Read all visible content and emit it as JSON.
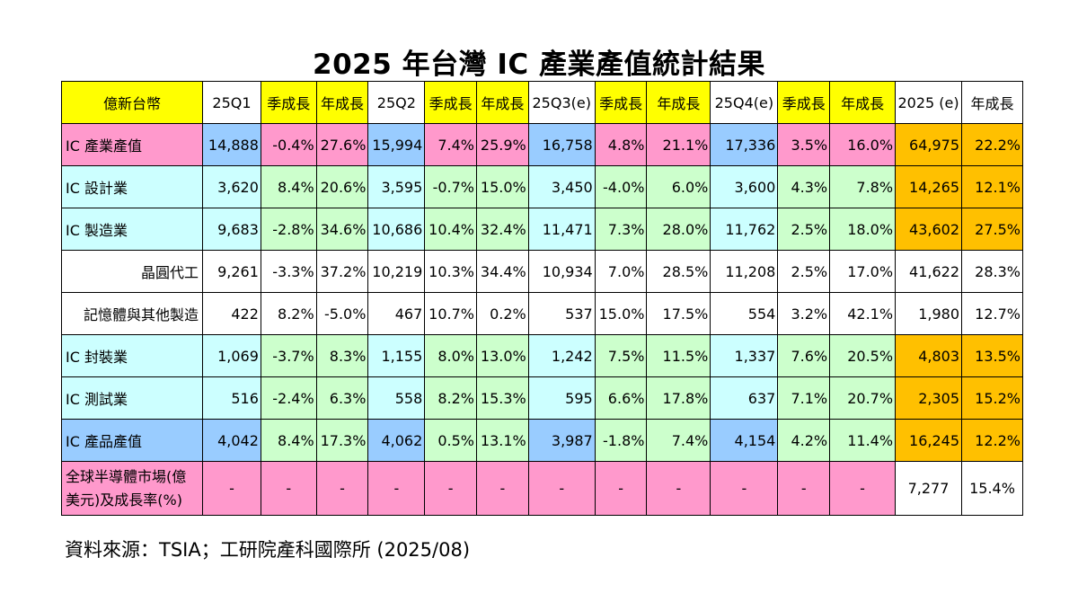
{
  "title": "2025 年台灣 IC 產業產值統計結果",
  "source": "資料來源：TSIA；工研院產科國際所  (2025/08)",
  "colors": {
    "yellow": "#ffff00",
    "pink": "#ff99cc",
    "blue": "#99ccff",
    "cyan": "#ccffff",
    "green": "#ccffcc",
    "orange": "#ffc000",
    "white": "#ffffff"
  },
  "table": {
    "headers": [
      "億新台幣",
      "25Q1",
      "季成長",
      "年成長",
      "25Q2",
      "季成長",
      "年成長",
      "25Q3(e)",
      "季成長",
      "年成長",
      "25Q4(e)",
      "季成長",
      "年成長",
      "2025 (e)",
      "年成長"
    ],
    "rows": [
      {
        "label": "IC 產業產值",
        "cells": [
          "14,888",
          "-0.4%",
          "27.6%",
          "15,994",
          "7.4%",
          "25.9%",
          "16,758",
          "4.8%",
          "21.1%",
          "17,336",
          "3.5%",
          "16.0%",
          "64,975",
          "22.2%"
        ]
      },
      {
        "label": "IC 設計業",
        "cells": [
          "3,620",
          "8.4%",
          "20.6%",
          "3,595",
          "-0.7%",
          "15.0%",
          "3,450",
          "-4.0%",
          "6.0%",
          "3,600",
          "4.3%",
          "7.8%",
          "14,265",
          "12.1%"
        ]
      },
      {
        "label": "IC 製造業",
        "cells": [
          "9,683",
          "-2.8%",
          "34.6%",
          "10,686",
          "10.4%",
          "32.4%",
          "11,471",
          "7.3%",
          "28.0%",
          "11,762",
          "2.5%",
          "18.0%",
          "43,602",
          "27.5%"
        ]
      },
      {
        "label": "晶圓代工",
        "cells": [
          "9,261",
          "-3.3%",
          "37.2%",
          "10,219",
          "10.3%",
          "34.4%",
          "10,934",
          "7.0%",
          "28.5%",
          "11,208",
          "2.5%",
          "17.0%",
          "41,622",
          "28.3%"
        ]
      },
      {
        "label": "記憶體與其他製造",
        "cells": [
          "422",
          "8.2%",
          "-5.0%",
          "467",
          "10.7%",
          "0.2%",
          "537",
          "15.0%",
          "17.5%",
          "554",
          "3.2%",
          "42.1%",
          "1,980",
          "12.7%"
        ]
      },
      {
        "label": "IC 封裝業",
        "cells": [
          "1,069",
          "-3.7%",
          "8.3%",
          "1,155",
          "8.0%",
          "13.0%",
          "1,242",
          "7.5%",
          "11.5%",
          "1,337",
          "7.6%",
          "20.5%",
          "4,803",
          "13.5%"
        ]
      },
      {
        "label": "IC 測試業",
        "cells": [
          "516",
          "-2.4%",
          "6.3%",
          "558",
          "8.2%",
          "15.3%",
          "595",
          "6.6%",
          "17.8%",
          "637",
          "7.1%",
          "20.7%",
          "2,305",
          "15.2%"
        ]
      },
      {
        "label": "IC 產品產值",
        "cells": [
          "4,042",
          "8.4%",
          "17.3%",
          "4,062",
          "0.5%",
          "13.1%",
          "3,987",
          "-1.8%",
          "7.4%",
          "4,154",
          "4.2%",
          "11.4%",
          "16,245",
          "12.2%"
        ]
      },
      {
        "label": "全球半導體市場(億美元)及成長率(%)",
        "cells": [
          "-",
          "-",
          "-",
          "-",
          "-",
          "-",
          "-",
          "-",
          "-",
          "-",
          "-",
          "-",
          "7,277",
          "15.4%"
        ]
      }
    ]
  }
}
